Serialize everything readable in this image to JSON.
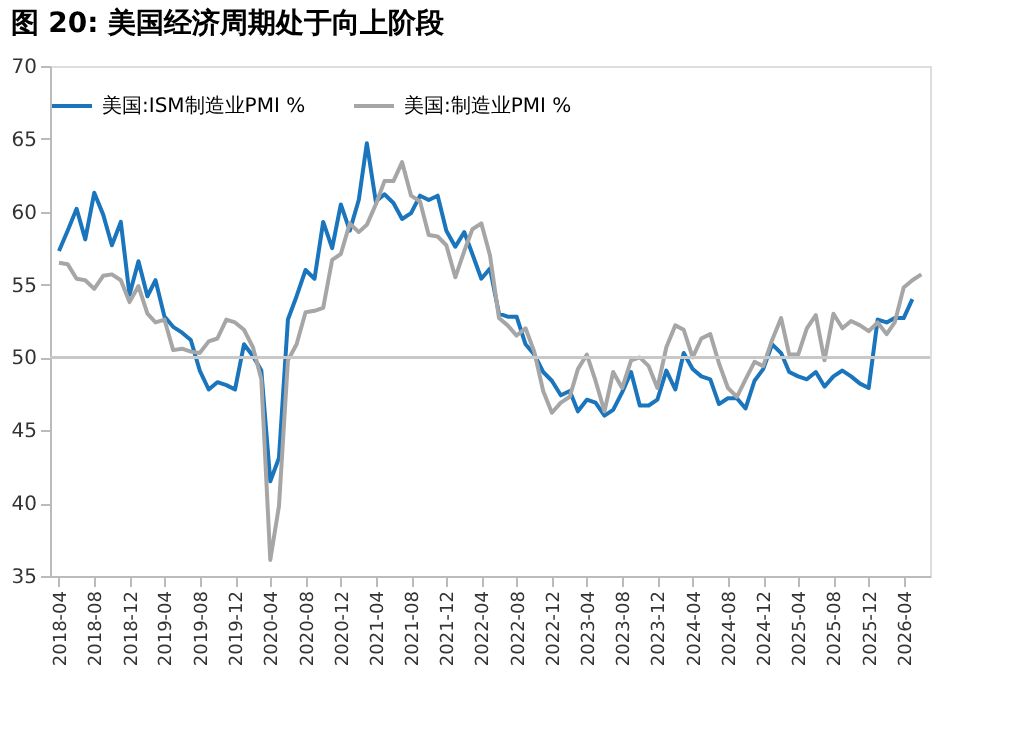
{
  "chart_data": {
    "type": "line",
    "title": "图 20:   美国经济周期处于向上阶段",
    "x": [
      "2018-04",
      "2018-05",
      "2018-06",
      "2018-07",
      "2018-08",
      "2018-09",
      "2018-10",
      "2018-11",
      "2018-12",
      "2019-01",
      "2019-02",
      "2019-03",
      "2019-04",
      "2019-05",
      "2019-06",
      "2019-07",
      "2019-08",
      "2019-09",
      "2019-10",
      "2019-11",
      "2019-12",
      "2020-01",
      "2020-02",
      "2020-03",
      "2020-04",
      "2020-05",
      "2020-06",
      "2020-07",
      "2020-08",
      "2020-09",
      "2020-10",
      "2020-11",
      "2020-12",
      "2021-01",
      "2021-02",
      "2021-03",
      "2021-04",
      "2021-05",
      "2021-06",
      "2021-07",
      "2021-08",
      "2021-09",
      "2021-10",
      "2021-11",
      "2021-12",
      "2022-01",
      "2022-02",
      "2022-03",
      "2022-04",
      "2022-05",
      "2022-06",
      "2022-07",
      "2022-08",
      "2022-09",
      "2022-10",
      "2022-11",
      "2022-12",
      "2023-01",
      "2023-02",
      "2023-03",
      "2023-04",
      "2023-05",
      "2023-06",
      "2023-07",
      "2023-08",
      "2023-09",
      "2023-10",
      "2023-11",
      "2023-12",
      "2024-01",
      "2024-02",
      "2024-03",
      "2024-04",
      "2024-05",
      "2024-06",
      "2024-07",
      "2024-08",
      "2024-09",
      "2024-10",
      "2024-11",
      "2024-12",
      "2025-01",
      "2025-02",
      "2025-03",
      "2025-04",
      "2025-05",
      "2025-06",
      "2025-07",
      "2025-08",
      "2025-09",
      "2025-10",
      "2025-11",
      "2025-12",
      "2026-01",
      "2026-02",
      "2026-03",
      "2026-04",
      "2026-05",
      "2026-06"
    ],
    "series": [
      {
        "name": "美国:ISM制造业PMI %",
        "color": "#1a75bc",
        "values": [
          57.3,
          58.7,
          60.2,
          58.1,
          61.3,
          59.8,
          57.7,
          59.3,
          54.3,
          56.6,
          54.2,
          55.3,
          52.8,
          52.1,
          51.7,
          51.2,
          49.1,
          47.8,
          48.3,
          48.1,
          47.8,
          50.9,
          50.1,
          49.1,
          41.5,
          43.1,
          52.6,
          54.2,
          56.0,
          55.4,
          59.3,
          57.5,
          60.5,
          58.7,
          60.8,
          64.7,
          60.7,
          61.2,
          60.6,
          59.5,
          59.9,
          61.1,
          60.8,
          61.1,
          58.7,
          57.6,
          58.6,
          57.1,
          55.4,
          56.1,
          53.0,
          52.8,
          52.8,
          50.9,
          50.2,
          49.0,
          48.4,
          47.4,
          47.7,
          46.3,
          47.1,
          46.9,
          46.0,
          46.4,
          47.6,
          49.0,
          46.7,
          46.7,
          47.1,
          49.1,
          47.8,
          50.3,
          49.2,
          48.7,
          48.5,
          46.8,
          47.2,
          47.2,
          46.5,
          48.4,
          49.2,
          50.9,
          50.3,
          49.0,
          48.7,
          48.5,
          49.0,
          48.0,
          48.7,
          49.1,
          48.7,
          48.2,
          47.9,
          52.6,
          52.4,
          52.7,
          52.7,
          54.0,
          null
        ]
      },
      {
        "name": "美国:制造业PMI %",
        "color": "#a6a6a6",
        "values": [
          56.5,
          56.4,
          55.4,
          55.3,
          54.7,
          55.6,
          55.7,
          55.3,
          53.8,
          54.9,
          53.0,
          52.4,
          52.6,
          50.5,
          50.6,
          50.4,
          50.3,
          51.1,
          51.3,
          52.6,
          52.4,
          51.9,
          50.7,
          48.5,
          36.1,
          39.8,
          49.8,
          50.9,
          53.1,
          53.2,
          53.4,
          56.7,
          57.1,
          59.2,
          58.6,
          59.1,
          60.5,
          62.1,
          62.1,
          63.4,
          61.1,
          60.7,
          58.4,
          58.3,
          57.7,
          55.5,
          57.3,
          58.8,
          59.2,
          57.0,
          52.7,
          52.2,
          51.5,
          52.0,
          50.4,
          47.7,
          46.2,
          46.9,
          47.3,
          49.2,
          50.2,
          48.4,
          46.3,
          49.0,
          47.9,
          49.8,
          50.0,
          49.4,
          47.9,
          50.7,
          52.2,
          51.9,
          50.0,
          51.3,
          51.6,
          49.6,
          47.9,
          47.3,
          48.5,
          49.7,
          49.4,
          51.2,
          52.7,
          50.2,
          50.2,
          52.0,
          52.9,
          49.8,
          53.0,
          52.0,
          52.5,
          52.2,
          51.8,
          52.4,
          51.6,
          52.4,
          54.8,
          55.3,
          55.7
        ]
      }
    ],
    "xlim": [
      "2018-03",
      "2026-07"
    ],
    "xticks": [
      {
        "value": "2018-04",
        "label": "2018-04"
      },
      {
        "value": "2018-08",
        "label": "2018-08"
      },
      {
        "value": "2018-12",
        "label": "2018-12"
      },
      {
        "value": "2019-04",
        "label": "2019-04"
      },
      {
        "value": "2019-08",
        "label": "2019-08"
      },
      {
        "value": "2019-12",
        "label": "2019-12"
      },
      {
        "value": "2020-04",
        "label": "2020-04"
      },
      {
        "value": "2020-08",
        "label": "2020-08"
      },
      {
        "value": "2020-12",
        "label": "2020-12"
      },
      {
        "value": "2021-04",
        "label": "2021-04"
      },
      {
        "value": "2021-08",
        "label": "2021-08"
      },
      {
        "value": "2021-12",
        "label": "2021-12"
      },
      {
        "value": "2022-04",
        "label": "2022-04"
      },
      {
        "value": "2022-08",
        "label": "2022-08"
      },
      {
        "value": "2022-12",
        "label": "2022-12"
      },
      {
        "value": "2023-04",
        "label": "2023-04"
      },
      {
        "value": "2023-08",
        "label": "2023-08"
      },
      {
        "value": "2023-12",
        "label": "2023-12"
      },
      {
        "value": "2024-04",
        "label": "2024-04"
      },
      {
        "value": "2024-08",
        "label": "2024-08"
      },
      {
        "value": "2024-12",
        "label": "2024-12"
      },
      {
        "value": "2025-04",
        "label": "2025-04"
      },
      {
        "value": "2025-08",
        "label": "2025-08"
      },
      {
        "value": "2025-12",
        "label": "2025-12"
      },
      {
        "value": "2026-04",
        "label": "2026-04"
      }
    ],
    "ylim": [
      35,
      70
    ],
    "yticks": [
      35,
      40,
      45,
      50,
      55,
      60,
      65,
      70
    ],
    "ref_lines": [
      {
        "axis": "y",
        "value": 50,
        "color": "#c8c8c8"
      }
    ],
    "grid": false,
    "legend": "top",
    "line_style": "solid",
    "marker": "none"
  }
}
